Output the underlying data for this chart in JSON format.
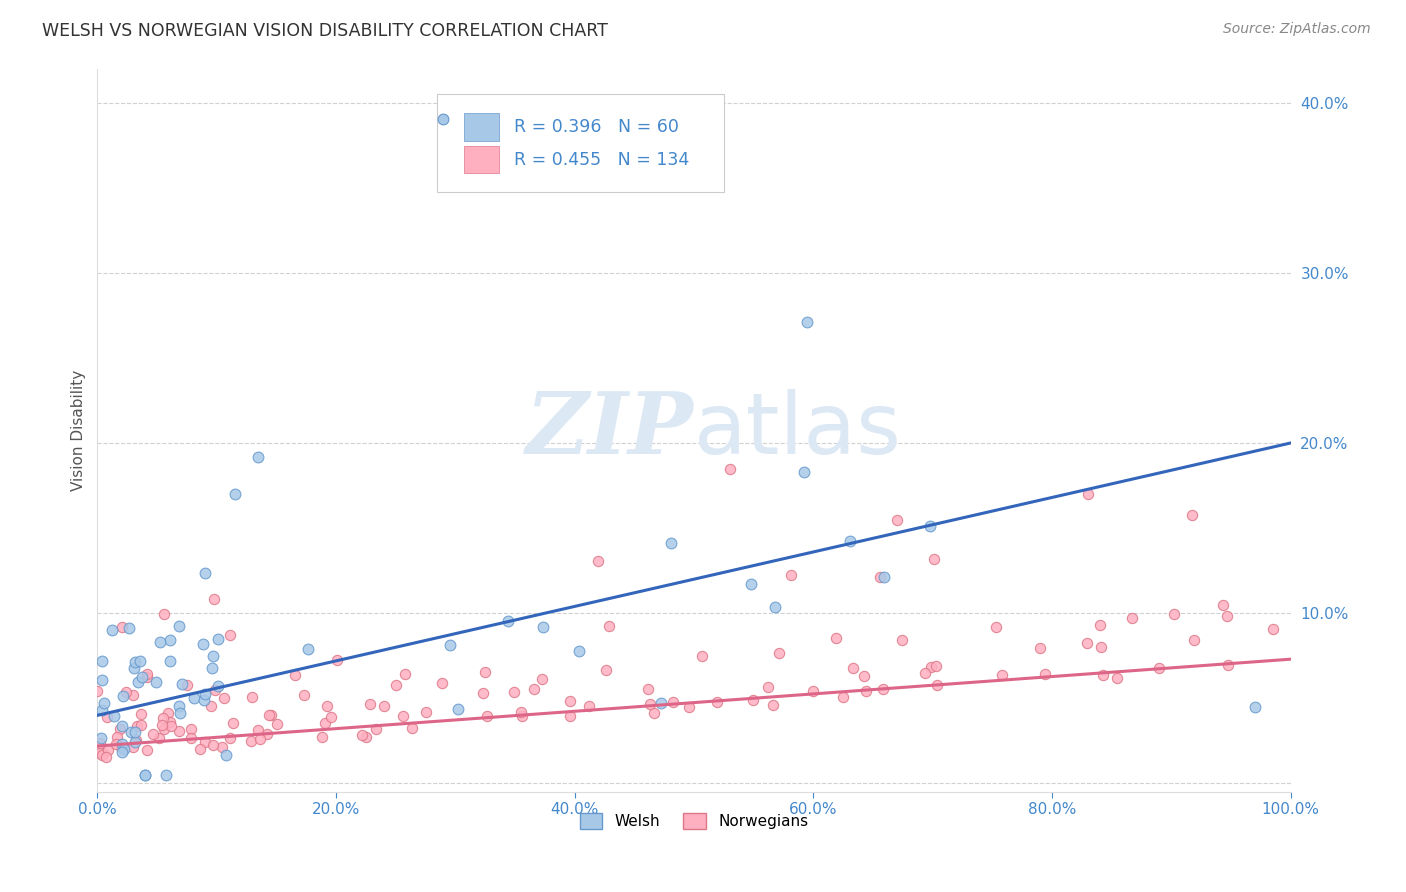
{
  "title": "WELSH VS NORWEGIAN VISION DISABILITY CORRELATION CHART",
  "source": "Source: ZipAtlas.com",
  "ylabel": "Vision Disability",
  "xlim": [
    0,
    1.0
  ],
  "ylim": [
    -0.005,
    0.42
  ],
  "xticks": [
    0.0,
    0.2,
    0.4,
    0.6,
    0.8,
    1.0
  ],
  "yticks": [
    0.0,
    0.1,
    0.2,
    0.3,
    0.4
  ],
  "welsh_R": 0.396,
  "welsh_N": 60,
  "norwegian_R": 0.455,
  "norwegian_N": 134,
  "welsh_color": "#a8c8e8",
  "welsh_edge_color": "#6699cc",
  "norwegian_color": "#ffb0c0",
  "norwegian_edge_color": "#dd7788",
  "trendline_welsh_color": "#3366bb",
  "trendline_norwegian_color": "#dd6688",
  "watermark_color": "#dde8f5",
  "title_color": "#333333",
  "tick_color": "#4488cc",
  "source_color": "#888888",
  "ylabel_color": "#555555",
  "legend_text_color": "#4488cc",
  "grid_color": "#cccccc"
}
